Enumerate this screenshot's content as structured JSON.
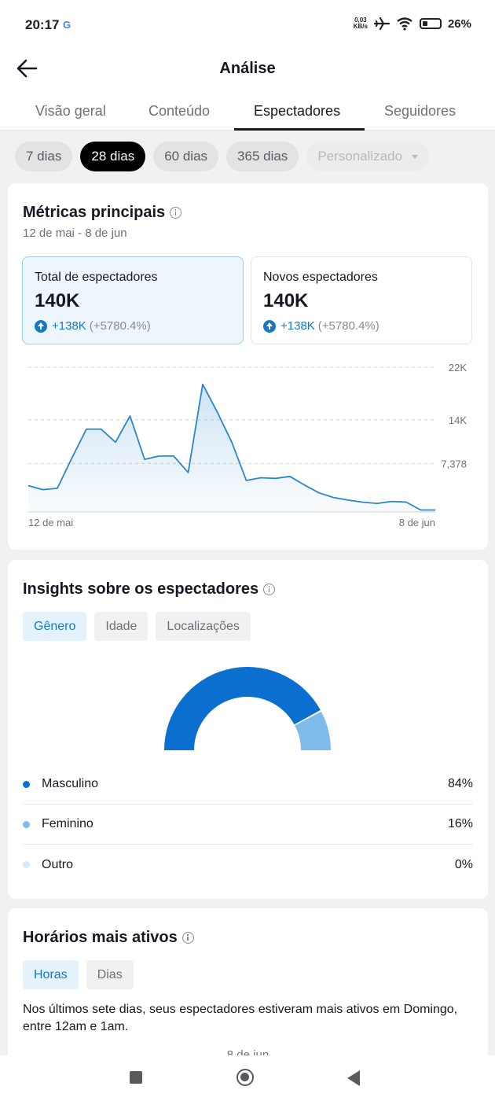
{
  "status_bar": {
    "time": "20:17",
    "google": "G",
    "net_speed_top": "0,03",
    "net_speed_bottom": "KB/s",
    "battery": "26%"
  },
  "header": {
    "title": "Análise",
    "back_icon": "arrow-left-icon"
  },
  "tabs": [
    {
      "label": "Visão geral",
      "active": false
    },
    {
      "label": "Conteúdo",
      "active": false
    },
    {
      "label": "Espectadores",
      "active": true
    },
    {
      "label": "Seguidores",
      "active": false
    }
  ],
  "period_chips": [
    {
      "label": "7 dias"
    },
    {
      "label": "28 dias"
    },
    {
      "label": "60 dias"
    },
    {
      "label": "365 dias"
    },
    {
      "label": "Personalizado"
    }
  ],
  "key_metrics": {
    "title": "Métricas principais",
    "date_range": "12 de mai - 8 de jun",
    "cards": [
      {
        "label": "Total de espectadores",
        "value": "140K",
        "delta": "+138K",
        "delta_pct": "(+5780.4%)"
      },
      {
        "label": "Novos espectadores",
        "value": "140K",
        "delta": "+138K",
        "delta_pct": "(+5780.4%)"
      }
    ],
    "accent_color": "#1378c8"
  },
  "chart_data": {
    "type": "area",
    "x_start_label": "12 de mai",
    "x_end_label": "8 de jun",
    "y_ticks": [
      "22K",
      "14K",
      "7,378"
    ],
    "ylim": [
      0,
      22000
    ],
    "values": [
      4000,
      3400,
      3600,
      8200,
      12600,
      12600,
      10600,
      14600,
      8000,
      8500,
      8500,
      6000,
      19400,
      15200,
      10600,
      4800,
      5200,
      5100,
      5400,
      4100,
      2900,
      2200,
      1800,
      1500,
      1300,
      1600,
      1500,
      300,
      300
    ],
    "line_color": "#2b86c9"
  },
  "insights": {
    "title": "Insights sobre os espectadores",
    "segments": [
      {
        "label": "Gênero",
        "active": true
      },
      {
        "label": "Idade",
        "active": false
      },
      {
        "label": "Localizações",
        "active": false
      }
    ],
    "gender": [
      {
        "label": "Masculino",
        "value": "84%",
        "fraction": 0.84,
        "color": "#0b6fcf"
      },
      {
        "label": "Feminino",
        "value": "16%",
        "fraction": 0.16,
        "color": "#7fbcec"
      },
      {
        "label": "Outro",
        "value": "0%",
        "fraction": 0,
        "color": "#d4e8f8"
      }
    ]
  },
  "active_times": {
    "title": "Horários mais ativos",
    "segments": [
      {
        "label": "Horas",
        "active": true
      },
      {
        "label": "Dias",
        "active": false
      }
    ],
    "description": "Nos últimos sete dias, seus espectadores estiveram mais ativos em Domingo, entre 12am e 1am.",
    "partial_date": "8 de jun"
  },
  "nav_bar": {
    "recents_icon": "square-icon",
    "home_icon": "circle-home-icon",
    "back_icon": "triangle-back-icon"
  }
}
